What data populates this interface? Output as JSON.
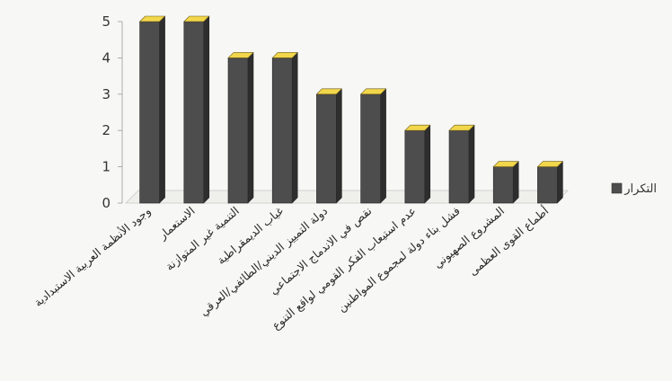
{
  "chart_data": {
    "type": "bar",
    "title": "",
    "xlabel": "",
    "ylabel": "",
    "ylim": [
      0,
      5
    ],
    "yticks": [
      0,
      1,
      2,
      3,
      4,
      5
    ],
    "grid": false,
    "legend_position": "right",
    "style": "3d-columns",
    "bar_color": "#4d4d4d",
    "bar_top_color": "#f2d64b",
    "categories": [
      "وجود الأنظمة العربية الاستبدادية",
      "الاستعمار",
      "التنمية غير المتوازنة",
      "غياب الديمقراطية",
      "دولة التمييز الديني/الطائفي/العرقي",
      "نقص في الاندماج الاجتماعي",
      "عدم استيعاب الفكر القومي لواقع التنوع",
      "فشل بناء دولة لمجموع المواطنين",
      "المشروع الصهيوني",
      "أطماع القوى العظمى"
    ],
    "series": [
      {
        "name": "التكرار",
        "values": [
          5,
          5,
          4,
          4,
          3,
          3,
          2,
          2,
          1,
          1
        ]
      }
    ]
  }
}
